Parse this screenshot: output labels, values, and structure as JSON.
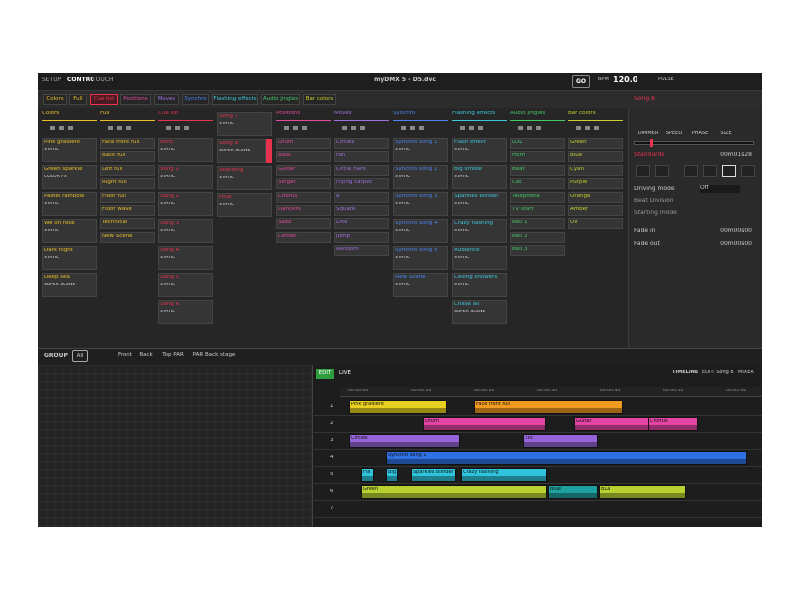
{
  "topbar": {
    "tabs": [
      "SETUP",
      "CONTROL",
      "TOUCH"
    ],
    "title": "myDMX 5 - D5.dvc",
    "go": "GO",
    "bpm_label": "BPM",
    "bpm": "120.0",
    "pulse": "PULSE"
  },
  "page_tabs": [
    "Colors",
    "Full",
    "Cue list",
    "Positions",
    "Moves",
    "Synchro",
    "Flashing effects",
    "Audio jingles",
    "Bar colors"
  ],
  "columns": [
    {
      "title": "Colors",
      "color": "#e8c028",
      "cues": [
        {
          "label": "Pink gradient",
          "mode": "STATIC"
        },
        {
          "label": "Green sparkle",
          "mode": "COLOR FX"
        },
        {
          "label": "Pastel rainbow",
          "mode": "STATIC"
        },
        {
          "label": "We on rose",
          "mode": "STATIC"
        },
        {
          "label": "Dark night",
          "mode": "STATIC"
        },
        {
          "label": "Deep sea",
          "mode": "SUPER SCENE"
        }
      ]
    },
    {
      "title": "Full",
      "color": "#e8c028",
      "cues": [
        {
          "label": "Face front full"
        },
        {
          "label": "Back full"
        },
        {
          "label": "Left full"
        },
        {
          "label": "Right full"
        },
        {
          "label": "Floor full"
        },
        {
          "label": "Floor wave"
        },
        {
          "label": "Technical"
        },
        {
          "label": "New Scene"
        }
      ]
    },
    {
      "title": "Cue list",
      "color": "#e8334f",
      "cues": [
        {
          "label": "Intro",
          "mode": "STATIC"
        },
        {
          "label": "Song 1",
          "mode": "STATIC"
        },
        {
          "label": "Song 2",
          "mode": "STATIC"
        },
        {
          "label": "Song 3",
          "mode": "STATIC"
        },
        {
          "label": "Song 4",
          "mode": "STATIC"
        },
        {
          "label": "Song 5",
          "mode": "STATIC"
        },
        {
          "label": "Song 6",
          "mode": "STATIC"
        }
      ]
    },
    {
      "color": "#e8334f",
      "cues": [
        {
          "label": "Song 7",
          "mode": "STATIC"
        },
        {
          "label": "Song 8",
          "mode": "SUPER SCENE"
        },
        {
          "label": "Standing",
          "mode": "STATIC"
        },
        {
          "label": "Final",
          "mode": "STATIC"
        }
      ]
    },
    {
      "title": "Positions",
      "color": "#e44aa0",
      "cues": [
        {
          "label": "Drum"
        },
        {
          "label": "Bass"
        },
        {
          "label": "Guitar"
        },
        {
          "label": "Singer"
        },
        {
          "label": "Chorus"
        },
        {
          "label": "Dancers"
        },
        {
          "label": "Saxo"
        },
        {
          "label": "Center"
        }
      ]
    },
    {
      "title": "Moves",
      "color": "#a070e0",
      "cues": [
        {
          "label": "Circles"
        },
        {
          "label": "Fan"
        },
        {
          "label": "Circle hard"
        },
        {
          "label": "Flying carpet"
        },
        {
          "label": "8"
        },
        {
          "label": "Square"
        },
        {
          "label": "Line"
        },
        {
          "label": "Jump"
        },
        {
          "label": "Random"
        }
      ]
    },
    {
      "title": "Synchro",
      "color": "#4a86f0",
      "cues": [
        {
          "label": "Synchro song 1",
          "mode": "STATIC"
        },
        {
          "label": "Synchro song 2",
          "mode": "STATIC"
        },
        {
          "label": "Synchro song 3",
          "mode": "STATIC"
        },
        {
          "label": "Synchro song 4",
          "mode": "STATIC"
        },
        {
          "label": "Synchro song 5",
          "mode": "STATIC"
        },
        {
          "label": "New Scene",
          "mode": "STATIC"
        }
      ]
    },
    {
      "title": "Flashing effects",
      "color": "#3cc8dc",
      "cues": [
        {
          "label": "Flash effect",
          "mode": "STATIC"
        },
        {
          "label": "Big strobe",
          "mode": "STATIC"
        },
        {
          "label": "Sparkles blinder",
          "mode": "STATIC"
        },
        {
          "label": "Crazy flashing",
          "mode": "STATIC"
        },
        {
          "label": "Audience",
          "mode": "STATIC"
        },
        {
          "label": "Ceiling showers",
          "mode": "STATIC"
        },
        {
          "label": "Chase all",
          "mode": "SUPER SCENE"
        }
      ]
    },
    {
      "title": "Audio jingles",
      "color": "#44c868",
      "cues": [
        {
          "label": "LOL"
        },
        {
          "label": "Horn"
        },
        {
          "label": "Beat"
        },
        {
          "label": "Cat"
        },
        {
          "label": "Telephone"
        },
        {
          "label": "TV start"
        },
        {
          "label": "Bell 1"
        },
        {
          "label": "Bell 2"
        },
        {
          "label": "Bell 3"
        }
      ]
    },
    {
      "title": "Bar colors",
      "color": "#c8d030",
      "cues": [
        {
          "label": "Green"
        },
        {
          "label": "Blue"
        },
        {
          "label": "Cyan"
        },
        {
          "label": "Purple"
        },
        {
          "label": "Orange"
        },
        {
          "label": "Amber"
        },
        {
          "label": "UV"
        }
      ]
    }
  ],
  "inspector": {
    "scene": "Song 8",
    "knobs": [
      "DIMMER",
      "SPEED",
      "PHASE",
      "SIZE"
    ],
    "name": "Standards",
    "time": "00m01s28",
    "rows": [
      {
        "label": "Driving mode",
        "value": "Off"
      },
      {
        "label": "Beat Division"
      },
      {
        "label": "Starting mode"
      }
    ],
    "fades": [
      {
        "label": "Fade in",
        "value": "00m00s00"
      },
      {
        "label": "Fade out",
        "value": "00m00s00"
      }
    ]
  },
  "group": {
    "label": "GROUP",
    "tabs": [
      "All",
      "Front",
      "Back",
      "Top PAR",
      "PAR Back stage"
    ]
  },
  "timeline": {
    "modes": [
      "EDIT",
      "LIVE"
    ],
    "views": [
      "TIMELINE",
      "EDIT: Song 8",
      "MIXER"
    ],
    "ruler": [
      "00:00:00",
      "00:00:10",
      "00:00:20",
      "00:00:30",
      "00:00:40",
      "00:00:50",
      "00:01:00"
    ],
    "tracks": [
      "1",
      "2",
      "3",
      "4",
      "5",
      "6",
      "7"
    ],
    "clips": [
      {
        "track": 0,
        "label": "Pink gradient",
        "color": "#e8d020"
      },
      {
        "track": 0,
        "label": "Face front full",
        "color": "#f09a20"
      },
      {
        "track": 1,
        "label": "Drum",
        "color": "#e444a4"
      },
      {
        "track": 1,
        "label": "Guitar",
        "color": "#e444a4"
      },
      {
        "track": 1,
        "label": "Chorus",
        "color": "#e444a4"
      },
      {
        "track": 2,
        "label": "Circles",
        "color": "#9464d8"
      },
      {
        "track": 2,
        "label": "Tilt",
        "color": "#9464d8"
      },
      {
        "track": 3,
        "label": "Synchro song 1",
        "color": "#2f70e2"
      },
      {
        "track": 4,
        "label": "Fla",
        "color": "#30c4dc"
      },
      {
        "track": 4,
        "label": "Big",
        "color": "#30c4dc"
      },
      {
        "track": 4,
        "label": "Sparkles blinder",
        "color": "#30c4dc"
      },
      {
        "track": 4,
        "label": "Crazy flashing",
        "color": "#30c4dc"
      },
      {
        "track": 5,
        "label": "Green",
        "color": "#b8d030"
      },
      {
        "track": 5,
        "label": "Blue",
        "color": "#1fa0a0"
      },
      {
        "track": 5,
        "label": "BLa",
        "color": "#b8d030"
      }
    ]
  }
}
